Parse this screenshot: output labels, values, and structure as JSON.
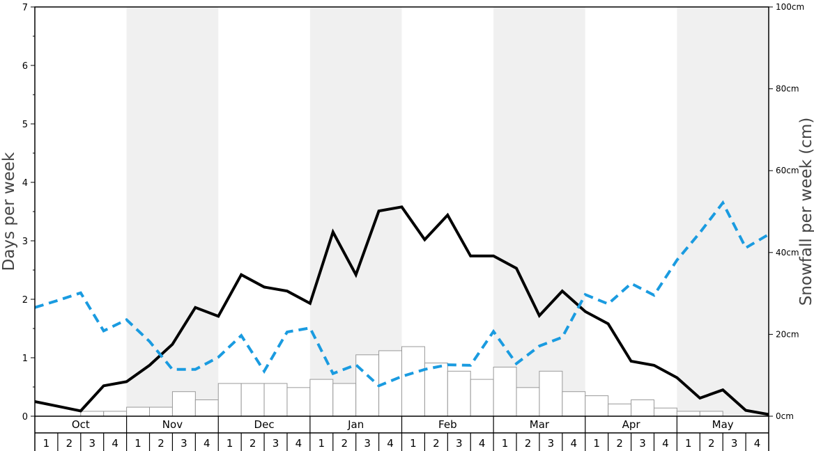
{
  "chart_data": {
    "type": "bar",
    "ylabel_left": "Days per week",
    "ylabel_right": "Snowfall per week (cm)",
    "ylim_left": [
      0,
      7
    ],
    "ylim_right": [
      0,
      100
    ],
    "left_ticks": [
      "0",
      "1",
      "2",
      "3",
      "4",
      "5",
      "6",
      "7"
    ],
    "right_ticks": [
      "0cm",
      "20cm",
      "40cm",
      "60cm",
      "80cm",
      "100cm"
    ],
    "months": [
      "Oct",
      "Nov",
      "Dec",
      "Jan",
      "Feb",
      "Mar",
      "Apr",
      "May"
    ],
    "weeks": [
      "1",
      "2",
      "3",
      "4"
    ],
    "shaded_months": [
      "Nov",
      "Jan",
      "Mar",
      "May"
    ],
    "colors": {
      "bars_fill": "#ffffff",
      "bars_stroke": "#999999",
      "solid_line": "#000000",
      "dashed_line": "#1a9be0",
      "shade": "#f0f0f0"
    },
    "series": [
      {
        "kind": "bar",
        "axis": "right",
        "values": [
          0,
          0,
          1.2,
          1.2,
          2.2,
          2.2,
          6,
          4,
          8,
          8,
          8,
          7,
          9,
          8,
          15,
          16,
          17,
          13,
          11,
          9,
          12,
          7,
          11,
          6,
          5,
          3,
          4,
          2,
          1.2,
          1.2,
          0,
          0
        ]
      },
      {
        "kind": "line",
        "style": "solid",
        "axis": "left",
        "values": [
          0.25,
          0.17,
          0.09,
          0.52,
          0.59,
          0.87,
          1.23,
          1.86,
          1.71,
          2.42,
          2.21,
          2.14,
          1.93,
          3.15,
          2.42,
          3.51,
          3.58,
          3.02,
          3.44,
          2.74,
          2.74,
          2.53,
          1.72,
          2.14,
          1.79,
          1.58,
          0.94,
          0.87,
          0.66,
          0.31,
          0.45,
          0.1,
          0.03
        ]
      },
      {
        "kind": "line",
        "style": "dashed",
        "axis": "left",
        "values": [
          1.86,
          1.98,
          2.11,
          1.46,
          1.65,
          1.28,
          0.8,
          0.8,
          1.01,
          1.38,
          0.77,
          1.44,
          1.51,
          0.73,
          0.88,
          0.52,
          0.68,
          0.8,
          0.88,
          0.87,
          1.45,
          0.9,
          1.2,
          1.35,
          2.08,
          1.92,
          2.27,
          2.07,
          2.67,
          3.14,
          3.65,
          2.88,
          3.11
        ]
      }
    ]
  }
}
